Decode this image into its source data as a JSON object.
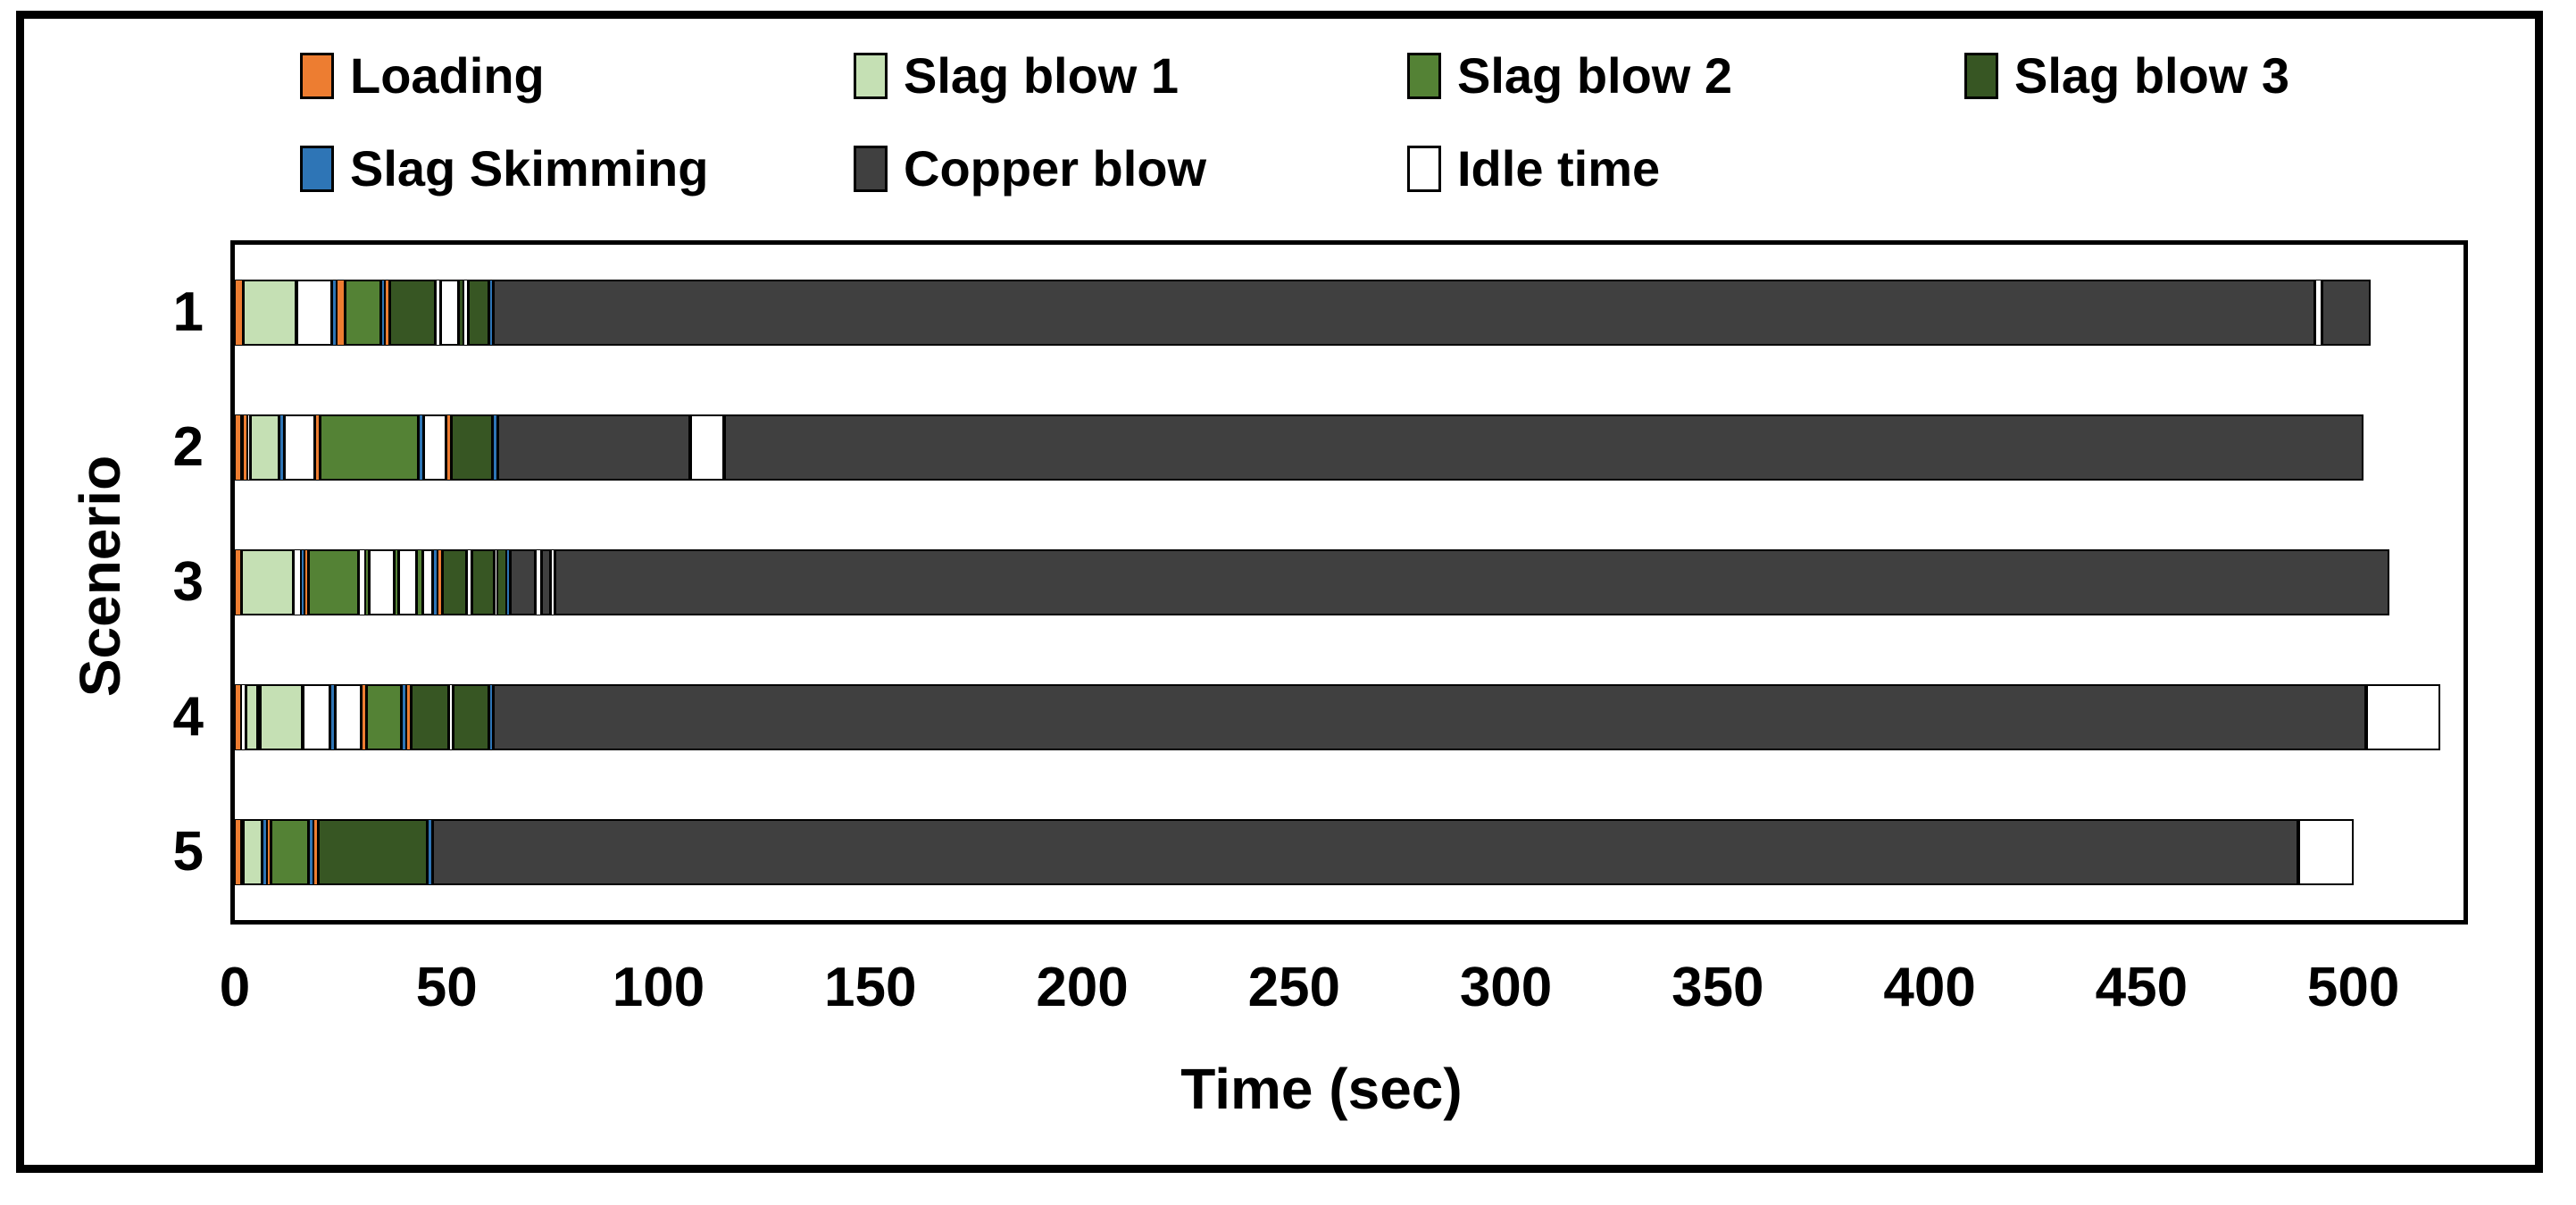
{
  "figure": {
    "background": "#ffffff",
    "border_color": "#000000"
  },
  "legend": {
    "items": [
      {
        "key": "loading",
        "label": "Loading",
        "color": "#ED7D31"
      },
      {
        "key": "slag_blow_1",
        "label": "Slag blow 1",
        "color": "#C5E0B4"
      },
      {
        "key": "slag_blow_2",
        "label": "Slag blow 2",
        "color": "#548235"
      },
      {
        "key": "slag_blow_3",
        "label": "Slag blow 3",
        "color": "#375623"
      },
      {
        "key": "slag_skimming",
        "label": "Slag Skimming",
        "color": "#2E75B6"
      },
      {
        "key": "copper_blow",
        "label": "Copper blow",
        "color": "#404040"
      },
      {
        "key": "idle_time",
        "label": "Idle time",
        "color": "#FFFFFF"
      }
    ]
  },
  "chart_data": {
    "type": "bar",
    "orientation": "horizontal",
    "stacked": true,
    "title": "",
    "xlabel": "Time (sec)",
    "ylabel": "Scenerio",
    "grid": false,
    "legend_position": "top",
    "xlim": [
      0,
      526
    ],
    "x_ticks": [
      0,
      50,
      100,
      150,
      200,
      250,
      300,
      350,
      400,
      450,
      500
    ],
    "categories": [
      "1",
      "2",
      "3",
      "4",
      "5"
    ],
    "phase_colors": {
      "loading": "#ED7D31",
      "slag_blow_1": "#C5E0B4",
      "slag_blow_2": "#548235",
      "slag_blow_3": "#375623",
      "slag_skimming": "#2E75B6",
      "copper_blow": "#404040",
      "idle_time": "#FFFFFF"
    },
    "scenarios": [
      {
        "label": "1",
        "total_sec": 504,
        "segments": [
          [
            "loading",
            2
          ],
          [
            "slag_blow_1",
            12.5
          ],
          [
            "idle_time",
            8.5
          ],
          [
            "slag_skimming",
            1
          ],
          [
            "loading",
            2
          ],
          [
            "slag_blow_2",
            8.5
          ],
          [
            "slag_skimming",
            1
          ],
          [
            "loading",
            1
          ],
          [
            "slag_blow_3",
            11
          ],
          [
            "idle_time",
            1
          ],
          [
            "idle_time",
            4.5
          ],
          [
            "slag_blow_3",
            1
          ],
          [
            "idle_time",
            1
          ],
          [
            "slag_blow_3",
            5
          ],
          [
            "slag_skimming",
            1
          ],
          [
            "copper_blow",
            430
          ],
          [
            "idle_time",
            1.5
          ],
          [
            "copper_blow",
            11.5
          ]
        ]
      },
      {
        "label": "2",
        "total_sec": 502,
        "segments": [
          [
            "loading",
            1.5
          ],
          [
            "idle_time",
            0.5
          ],
          [
            "loading",
            1
          ],
          [
            "idle_time",
            0.5
          ],
          [
            "slag_blow_1",
            7
          ],
          [
            "slag_skimming",
            1
          ],
          [
            "idle_time",
            7.5
          ],
          [
            "loading",
            1
          ],
          [
            "slag_blow_2",
            23.5
          ],
          [
            "slag_skimming",
            1
          ],
          [
            "idle_time",
            5.5
          ],
          [
            "loading",
            1
          ],
          [
            "slag_blow_3",
            10
          ],
          [
            "slag_skimming",
            1
          ],
          [
            "copper_blow",
            45.5
          ],
          [
            "idle_time",
            8
          ],
          [
            "copper_blow",
            387
          ]
        ]
      },
      {
        "label": "3",
        "total_sec": 508,
        "segments": [
          [
            "loading",
            1.5
          ],
          [
            "slag_blow_1",
            12.5
          ],
          [
            "idle_time",
            1.5
          ],
          [
            "slag_skimming",
            1
          ],
          [
            "loading",
            0.7
          ],
          [
            "slag_blow_2",
            12
          ],
          [
            "idle_time",
            1.5
          ],
          [
            "slag_blow_2",
            1
          ],
          [
            "idle_time",
            6
          ],
          [
            "slag_blow_2",
            0.8
          ],
          [
            "idle_time",
            4.5
          ],
          [
            "slag_blow_2",
            1.3
          ],
          [
            "idle_time",
            2.5
          ],
          [
            "slag_skimming",
            1
          ],
          [
            "loading",
            1
          ],
          [
            "slag_blow_3",
            6
          ],
          [
            "idle_time",
            1
          ],
          [
            "slag_blow_3",
            5.5
          ],
          [
            "idle_time",
            0.7
          ],
          [
            "slag_blow_3",
            2
          ],
          [
            "slag_skimming",
            1
          ],
          [
            "copper_blow",
            6
          ],
          [
            "idle_time",
            1.2
          ],
          [
            "copper_blow",
            2.5
          ],
          [
            "idle_time",
            0.8
          ],
          [
            "copper_blow",
            433
          ]
        ]
      },
      {
        "label": "4",
        "total_sec": 521,
        "segments": [
          [
            "loading",
            1.5
          ],
          [
            "idle_time",
            1
          ],
          [
            "slag_blow_1",
            3
          ],
          [
            "idle_time",
            0.5
          ],
          [
            "slag_blow_1",
            10
          ],
          [
            "idle_time",
            6.5
          ],
          [
            "slag_skimming",
            1
          ],
          [
            "idle_time",
            6.5
          ],
          [
            "loading",
            1
          ],
          [
            "slag_blow_2",
            8.5
          ],
          [
            "slag_skimming",
            1
          ],
          [
            "loading",
            1
          ],
          [
            "slag_blow_3",
            9
          ],
          [
            "idle_time",
            1
          ],
          [
            "slag_blow_3",
            8.5
          ],
          [
            "slag_skimming",
            1
          ],
          [
            "copper_blow",
            442
          ],
          [
            "idle_time",
            17.5
          ]
        ]
      },
      {
        "label": "5",
        "total_sec": 500,
        "segments": [
          [
            "loading",
            1.5
          ],
          [
            "idle_time",
            0.5
          ],
          [
            "slag_blow_1",
            4.5
          ],
          [
            "slag_skimming",
            1
          ],
          [
            "loading",
            1
          ],
          [
            "slag_blow_2",
            9
          ],
          [
            "slag_skimming",
            1
          ],
          [
            "loading",
            1
          ],
          [
            "slag_blow_3",
            26
          ],
          [
            "slag_skimming",
            1
          ],
          [
            "copper_blow",
            440.5
          ],
          [
            "idle_time",
            13
          ]
        ]
      }
    ]
  }
}
